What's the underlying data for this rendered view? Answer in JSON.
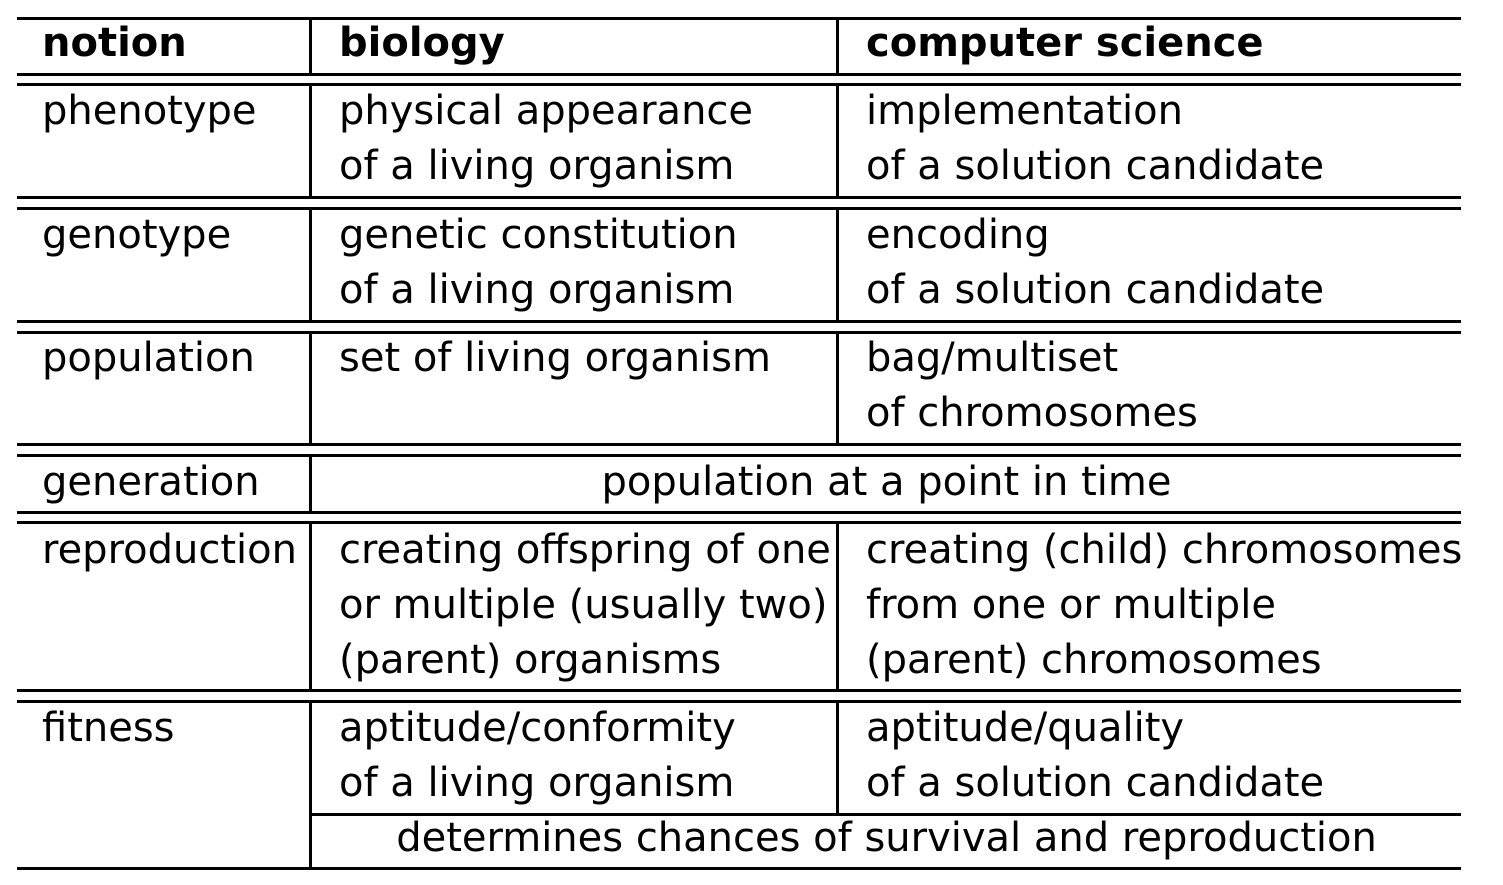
{
  "header": {
    "notion": "notion",
    "biology": "biology",
    "computer_science": "computer science"
  },
  "rows": {
    "phenotype": {
      "notion": "phenotype",
      "biology": [
        "physical appearance",
        "of a living organism"
      ],
      "computer_science": [
        "implementation",
        "of a solution candidate"
      ]
    },
    "genotype": {
      "notion": "genotype",
      "biology": [
        "genetic constitution",
        "of a living organism"
      ],
      "computer_science": [
        "encoding",
        "of a solution candidate"
      ]
    },
    "population": {
      "notion": "population",
      "biology": [
        "set of living organism"
      ],
      "computer_science": [
        "bag/multiset",
        "of chromosomes"
      ]
    },
    "generation": {
      "notion": "generation",
      "shared": "population at a point in time"
    },
    "reproduction": {
      "notion": "reproduction",
      "biology": [
        "creating offspring of one",
        "or multiple (usually two)",
        "(parent) organisms"
      ],
      "computer_science": [
        "creating (child) chromosomes",
        "from one or multiple",
        "(parent) chromosomes"
      ]
    },
    "fitness": {
      "notion": "fitness",
      "biology": [
        "aptitude/conformity",
        "of a living organism"
      ],
      "computer_science": [
        "aptitude/quality",
        "of a solution candidate"
      ],
      "shared": "determines chances of survival and reproduction"
    }
  }
}
